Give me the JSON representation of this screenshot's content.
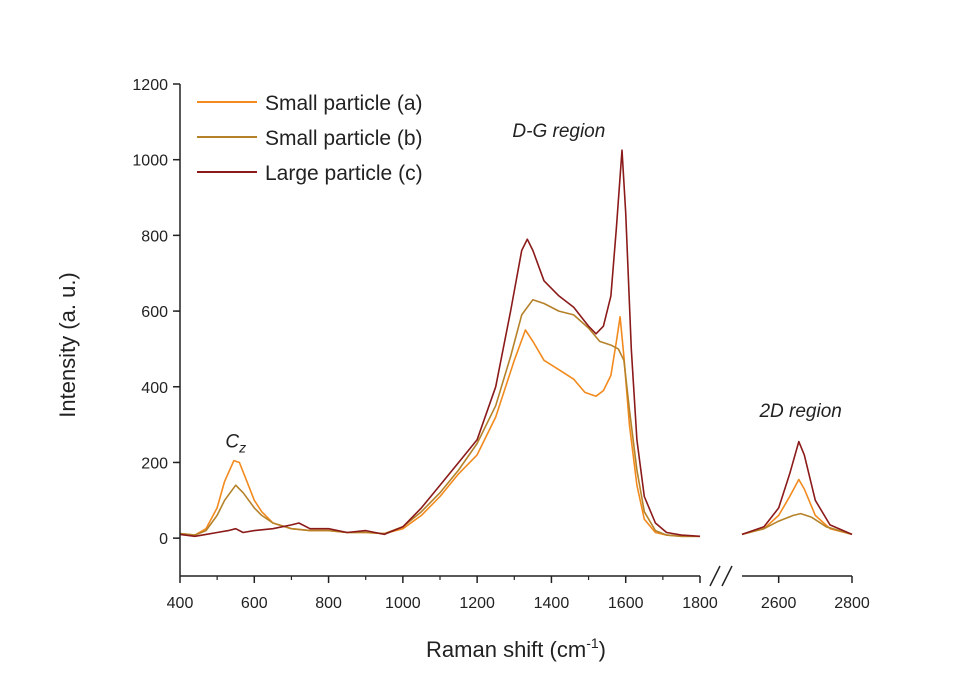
{
  "chart_data": {
    "type": "line",
    "xlabel": "Raman shift (cm",
    "xlabel_superscript": "-1",
    "xlabel_suffix": ")",
    "ylabel": "Intensity (a. u.)",
    "ylim": [
      -100,
      1200
    ],
    "yticks": [
      0,
      200,
      400,
      600,
      800,
      1000,
      1200
    ],
    "x_segments": [
      {
        "range": [
          400,
          1800
        ],
        "ticks": [
          400,
          600,
          800,
          1000,
          1200,
          1400,
          1600,
          1800
        ]
      },
      {
        "range": [
          2500,
          2800
        ],
        "ticks": [
          2600,
          2800
        ]
      }
    ],
    "x_break_between": [
      1800,
      2500
    ],
    "legend": {
      "placement": "top-left"
    },
    "annotations": [
      {
        "label": "C",
        "sub": "z",
        "x": 550,
        "y": 240
      },
      {
        "label": "D-G region",
        "x": 1420,
        "y": 1060
      },
      {
        "label": "2D region",
        "x": 2660,
        "y": 320
      }
    ],
    "series": [
      {
        "name": "Small particle (a)",
        "color": "#f28a1e",
        "points": [
          [
            400,
            12
          ],
          [
            440,
            8
          ],
          [
            470,
            25
          ],
          [
            500,
            80
          ],
          [
            520,
            150
          ],
          [
            545,
            205
          ],
          [
            560,
            200
          ],
          [
            580,
            150
          ],
          [
            600,
            100
          ],
          [
            620,
            70
          ],
          [
            650,
            40
          ],
          [
            700,
            25
          ],
          [
            750,
            20
          ],
          [
            800,
            20
          ],
          [
            850,
            15
          ],
          [
            900,
            15
          ],
          [
            950,
            12
          ],
          [
            1000,
            25
          ],
          [
            1050,
            60
          ],
          [
            1100,
            110
          ],
          [
            1150,
            170
          ],
          [
            1200,
            220
          ],
          [
            1250,
            320
          ],
          [
            1300,
            470
          ],
          [
            1330,
            550
          ],
          [
            1350,
            520
          ],
          [
            1380,
            470
          ],
          [
            1420,
            445
          ],
          [
            1460,
            420
          ],
          [
            1490,
            385
          ],
          [
            1520,
            375
          ],
          [
            1540,
            390
          ],
          [
            1560,
            430
          ],
          [
            1575,
            520
          ],
          [
            1585,
            585
          ],
          [
            1595,
            480
          ],
          [
            1610,
            300
          ],
          [
            1630,
            140
          ],
          [
            1650,
            50
          ],
          [
            1680,
            15
          ],
          [
            1710,
            8
          ],
          [
            1750,
            5
          ],
          [
            1800,
            5
          ],
          [
            2500,
            10
          ],
          [
            2560,
            25
          ],
          [
            2600,
            60
          ],
          [
            2630,
            110
          ],
          [
            2655,
            155
          ],
          [
            2670,
            130
          ],
          [
            2700,
            60
          ],
          [
            2740,
            25
          ],
          [
            2800,
            10
          ]
        ]
      },
      {
        "name": "Small particle (b)",
        "color": "#b5822a",
        "points": [
          [
            400,
            12
          ],
          [
            440,
            8
          ],
          [
            470,
            20
          ],
          [
            500,
            60
          ],
          [
            520,
            100
          ],
          [
            550,
            140
          ],
          [
            570,
            120
          ],
          [
            600,
            80
          ],
          [
            620,
            60
          ],
          [
            650,
            40
          ],
          [
            700,
            25
          ],
          [
            750,
            20
          ],
          [
            800,
            20
          ],
          [
            850,
            15
          ],
          [
            900,
            15
          ],
          [
            950,
            12
          ],
          [
            1000,
            30
          ],
          [
            1050,
            70
          ],
          [
            1100,
            120
          ],
          [
            1150,
            180
          ],
          [
            1200,
            250
          ],
          [
            1250,
            350
          ],
          [
            1290,
            480
          ],
          [
            1320,
            590
          ],
          [
            1350,
            630
          ],
          [
            1380,
            620
          ],
          [
            1420,
            600
          ],
          [
            1460,
            590
          ],
          [
            1500,
            555
          ],
          [
            1530,
            520
          ],
          [
            1560,
            510
          ],
          [
            1580,
            500
          ],
          [
            1595,
            470
          ],
          [
            1610,
            340
          ],
          [
            1630,
            180
          ],
          [
            1650,
            70
          ],
          [
            1680,
            20
          ],
          [
            1710,
            8
          ],
          [
            1750,
            5
          ],
          [
            1800,
            5
          ],
          [
            2500,
            10
          ],
          [
            2560,
            25
          ],
          [
            2600,
            45
          ],
          [
            2640,
            60
          ],
          [
            2660,
            65
          ],
          [
            2690,
            55
          ],
          [
            2730,
            30
          ],
          [
            2800,
            10
          ]
        ]
      },
      {
        "name": "Large particle (c)",
        "color": "#8b1a1a",
        "points": [
          [
            400,
            10
          ],
          [
            440,
            5
          ],
          [
            470,
            10
          ],
          [
            500,
            15
          ],
          [
            530,
            20
          ],
          [
            550,
            25
          ],
          [
            570,
            15
          ],
          [
            600,
            20
          ],
          [
            650,
            25
          ],
          [
            700,
            35
          ],
          [
            720,
            40
          ],
          [
            750,
            25
          ],
          [
            800,
            25
          ],
          [
            850,
            15
          ],
          [
            900,
            20
          ],
          [
            950,
            10
          ],
          [
            1000,
            30
          ],
          [
            1050,
            80
          ],
          [
            1100,
            140
          ],
          [
            1150,
            200
          ],
          [
            1200,
            260
          ],
          [
            1250,
            400
          ],
          [
            1290,
            600
          ],
          [
            1320,
            760
          ],
          [
            1335,
            790
          ],
          [
            1350,
            760
          ],
          [
            1380,
            680
          ],
          [
            1420,
            640
          ],
          [
            1460,
            610
          ],
          [
            1500,
            560
          ],
          [
            1520,
            540
          ],
          [
            1540,
            560
          ],
          [
            1560,
            640
          ],
          [
            1575,
            820
          ],
          [
            1590,
            1025
          ],
          [
            1600,
            860
          ],
          [
            1615,
            500
          ],
          [
            1630,
            260
          ],
          [
            1650,
            110
          ],
          [
            1680,
            40
          ],
          [
            1710,
            15
          ],
          [
            1750,
            8
          ],
          [
            1800,
            5
          ],
          [
            2500,
            10
          ],
          [
            2560,
            30
          ],
          [
            2600,
            80
          ],
          [
            2630,
            170
          ],
          [
            2655,
            255
          ],
          [
            2670,
            220
          ],
          [
            2700,
            100
          ],
          [
            2740,
            35
          ],
          [
            2800,
            10
          ]
        ]
      }
    ]
  }
}
